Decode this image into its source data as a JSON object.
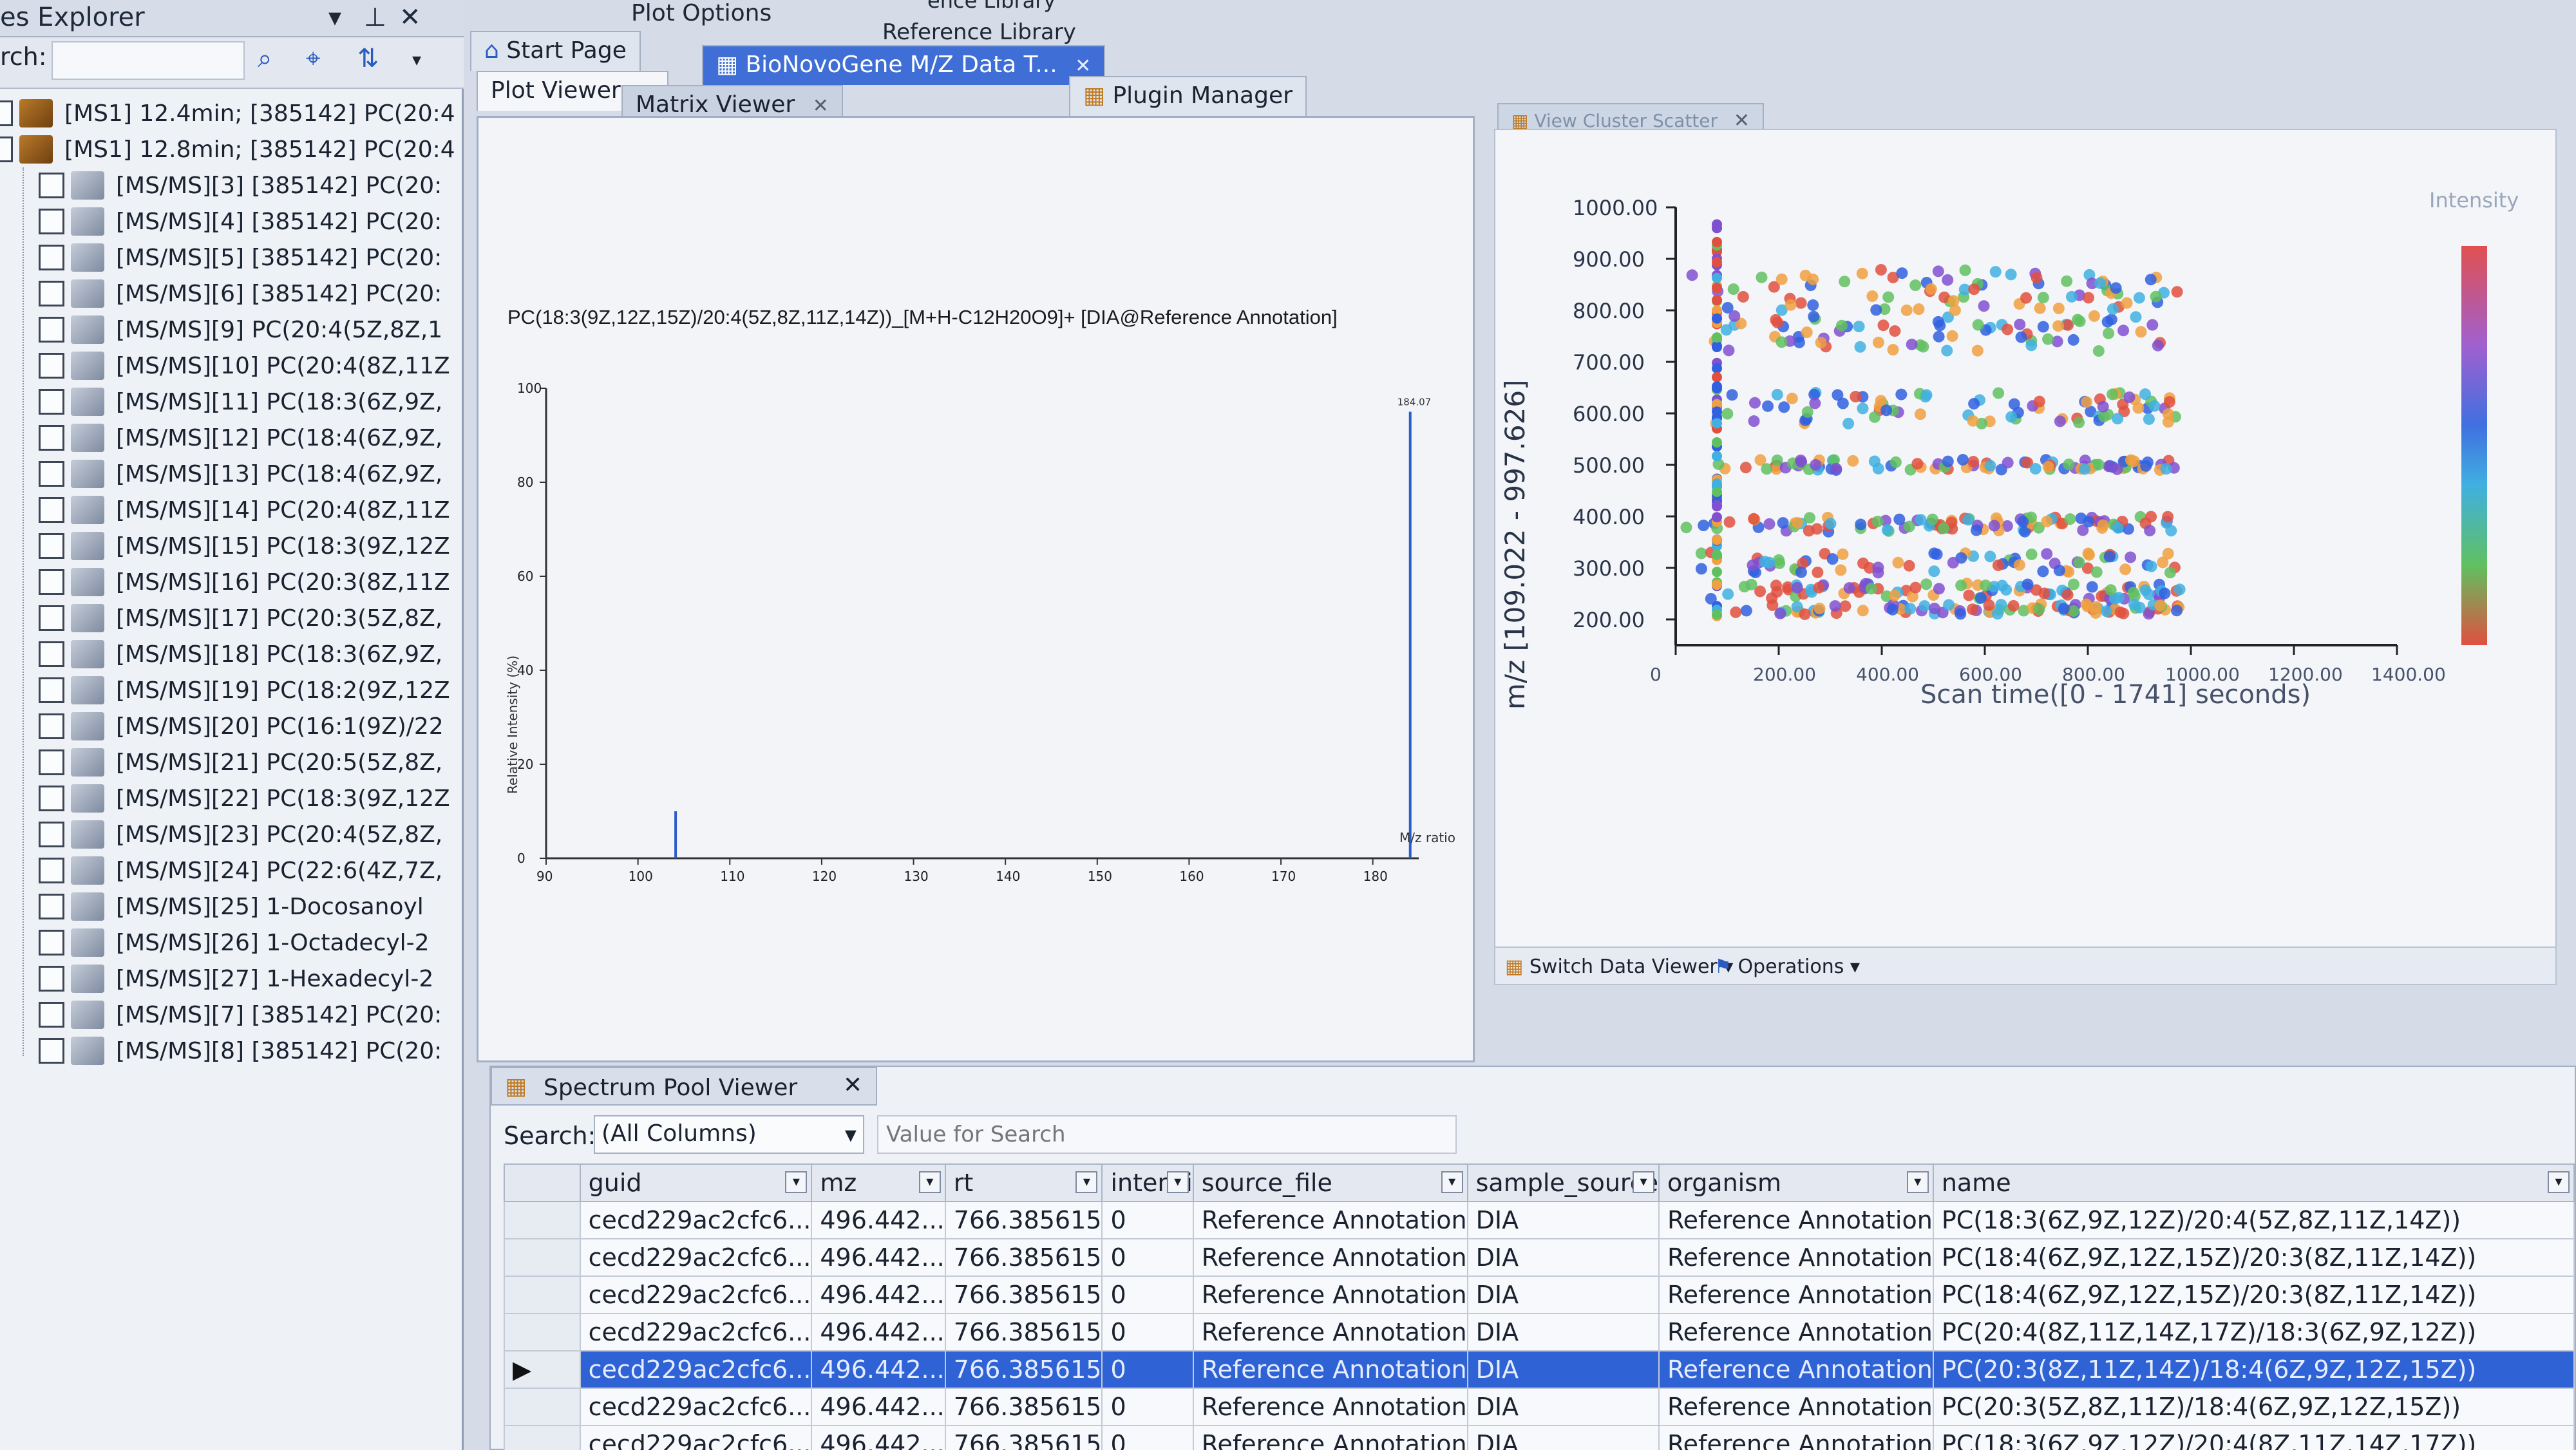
{
  "explorer": {
    "title": "es Explorer",
    "search_label": "rch:",
    "items": [
      {
        "level": "ms1",
        "text": "[MS1] 12.4min; [385142] PC(20:4"
      },
      {
        "level": "ms1",
        "text": "[MS1] 12.8min; [385142] PC(20:4"
      },
      {
        "level": "ms2",
        "text": "[MS/MS][3] [385142] PC(20:"
      },
      {
        "level": "ms2",
        "text": "[MS/MS][4] [385142] PC(20:"
      },
      {
        "level": "ms2",
        "text": "[MS/MS][5] [385142] PC(20:"
      },
      {
        "level": "ms2",
        "text": "[MS/MS][6] [385142] PC(20:"
      },
      {
        "level": "ms2",
        "text": "[MS/MS][9] PC(20:4(5Z,8Z,1"
      },
      {
        "level": "ms2",
        "text": "[MS/MS][10] PC(20:4(8Z,11Z"
      },
      {
        "level": "ms2",
        "text": "[MS/MS][11] PC(18:3(6Z,9Z,"
      },
      {
        "level": "ms2",
        "text": "[MS/MS][12] PC(18:4(6Z,9Z,"
      },
      {
        "level": "ms2",
        "text": "[MS/MS][13] PC(18:4(6Z,9Z,"
      },
      {
        "level": "ms2",
        "text": "[MS/MS][14] PC(20:4(8Z,11Z"
      },
      {
        "level": "ms2",
        "text": "[MS/MS][15] PC(18:3(9Z,12Z"
      },
      {
        "level": "ms2",
        "text": "[MS/MS][16] PC(20:3(8Z,11Z"
      },
      {
        "level": "ms2",
        "text": "[MS/MS][17] PC(20:3(5Z,8Z,"
      },
      {
        "level": "ms2",
        "text": "[MS/MS][18] PC(18:3(6Z,9Z,"
      },
      {
        "level": "ms2",
        "text": "[MS/MS][19] PC(18:2(9Z,12Z"
      },
      {
        "level": "ms2",
        "text": "[MS/MS][20] PC(16:1(9Z)/22"
      },
      {
        "level": "ms2",
        "text": "[MS/MS][21] PC(20:5(5Z,8Z,"
      },
      {
        "level": "ms2",
        "text": "[MS/MS][22] PC(18:3(9Z,12Z"
      },
      {
        "level": "ms2",
        "text": "[MS/MS][23] PC(20:4(5Z,8Z,"
      },
      {
        "level": "ms2",
        "text": "[MS/MS][24] PC(22:6(4Z,7Z,"
      },
      {
        "level": "ms2",
        "text": "[MS/MS][25] 1-Docosanoyl"
      },
      {
        "level": "ms2",
        "text": "[MS/MS][26] 1-Octadecyl-2"
      },
      {
        "level": "ms2",
        "text": "[MS/MS][27] 1-Hexadecyl-2"
      },
      {
        "level": "ms2",
        "text": "[MS/MS][7] [385142] PC(20:"
      },
      {
        "level": "ms2",
        "text": "[MS/MS][8] [385142] PC(20:"
      }
    ]
  },
  "menu": {
    "plot_options": "Plot Options",
    "library_top": "ence Library",
    "reference_library": "Reference Library"
  },
  "tabs": {
    "start_page": "Start Page",
    "data_tab": "BioNovoGene M/Z Data T...",
    "plugin_manager": "Plugin Manager",
    "plot_viewer": "Plot Viewer",
    "matrix_viewer": "Matrix Viewer",
    "view_scatter": "View Cluster Scatter"
  },
  "spectrum_plot": {
    "title": "PC(18:3(9Z,12Z,15Z)/20:4(5Z,8Z,11Z,14Z))_[M+H-C12H20O9]+  [DIA@Reference  Annotation]",
    "ylabel": "Relative Intensity (%)",
    "xlabel": "M/z ratio",
    "peak_label": "184.07"
  },
  "scatter_plot": {
    "ylabel": "m/z [109.022 - 997.626]",
    "xlabel": "Scan time([0 - 1741] seconds)",
    "legend_title": "Intensity"
  },
  "toolbar": {
    "switch_viewer": "Switch Data Viewer",
    "operations": "Operations"
  },
  "pool": {
    "title": "Spectrum Pool Viewer",
    "search_label": "Search:",
    "search_scope": "(All Columns)",
    "search_placeholder": "Value for Search",
    "columns": [
      "guid",
      "mz",
      "rt",
      "intensi",
      "source_file",
      "sample_source",
      "organism",
      "name"
    ],
    "rows": [
      [
        "cecd229ac2cfc6...",
        "496.442...",
        "766.385615",
        "0",
        "Reference Annotation",
        "DIA",
        "Reference Annotation",
        "PC(18:3(6Z,9Z,12Z)/20:4(5Z,8Z,11Z,14Z))"
      ],
      [
        "cecd229ac2cfc6...",
        "496.442...",
        "766.385615",
        "0",
        "Reference Annotation",
        "DIA",
        "Reference Annotation",
        "PC(18:4(6Z,9Z,12Z,15Z)/20:3(8Z,11Z,14Z))"
      ],
      [
        "cecd229ac2cfc6...",
        "496.442...",
        "766.385615",
        "0",
        "Reference Annotation",
        "DIA",
        "Reference Annotation",
        "PC(18:4(6Z,9Z,12Z,15Z)/20:3(8Z,11Z,14Z))"
      ],
      [
        "cecd229ac2cfc6...",
        "496.442...",
        "766.385615",
        "0",
        "Reference Annotation",
        "DIA",
        "Reference Annotation",
        "PC(20:4(8Z,11Z,14Z,17Z)/18:3(6Z,9Z,12Z))"
      ],
      [
        "cecd229ac2cfc6...",
        "496.442...",
        "766.385615",
        "0",
        "Reference Annotation",
        "DIA",
        "Reference Annotation",
        "PC(20:3(8Z,11Z,14Z)/18:4(6Z,9Z,12Z,15Z))"
      ],
      [
        "cecd229ac2cfc6...",
        "496.442...",
        "766.385615",
        "0",
        "Reference Annotation",
        "DIA",
        "Reference Annotation",
        "PC(20:3(5Z,8Z,11Z)/18:4(6Z,9Z,12Z,15Z))"
      ],
      [
        "cecd229ac2cfc6...",
        "496.442...",
        "766.385615",
        "0",
        "Reference Annotation",
        "DIA",
        "Reference Annotation",
        "PC(18:3(6Z,9Z,12Z)/20:4(8Z,11Z,14Z,17Z))"
      ]
    ],
    "selected_row": 4
  },
  "chart_data": [
    {
      "type": "bar",
      "title": "PC(18:3(9Z,12Z,15Z)/20:4(5Z,8Z,11Z,14Z))_[M+H-C12H20O9]+  [DIA@Reference  Annotation]",
      "xlabel": "M/z ratio",
      "ylabel": "Relative Intensity (%)",
      "xlim": [
        90,
        185
      ],
      "ylim": [
        0,
        100
      ],
      "x_ticks": [
        90,
        100,
        110,
        120,
        130,
        140,
        150,
        160,
        170,
        180
      ],
      "y_ticks": [
        0,
        20,
        40,
        60,
        80,
        100
      ],
      "x": [
        104.1,
        184.07
      ],
      "values": [
        10,
        95
      ],
      "labels": [
        "",
        "184.07"
      ]
    },
    {
      "type": "scatter",
      "xlabel": "Scan time([0 - 1741] seconds)",
      "ylabel": "m/z [109.022 - 997.626]",
      "xlim": [
        0,
        1400
      ],
      "ylim": [
        150,
        1000
      ],
      "x_ticks": [
        0,
        200,
        400,
        600,
        800,
        1000,
        1200,
        1400
      ],
      "y_ticks": [
        200,
        300,
        400,
        500,
        600,
        700,
        800,
        900,
        1000
      ],
      "y_tick_labels": [
        "200.00",
        "300.00",
        "400.00",
        "500.00",
        "600.00",
        "700.00",
        "800.00",
        "900.00",
        "1000.00"
      ],
      "x_tick_labels": [
        "0",
        "200.00",
        "400.00",
        "600.00",
        "800.00",
        "1000.00",
        "1200.00",
        "1400.00"
      ],
      "legend_title": "Intensity",
      "colors": [
        "#e05040",
        "#f0a040",
        "#60c060",
        "#40b0e0",
        "#3060e0",
        "#8050d0"
      ]
    }
  ]
}
